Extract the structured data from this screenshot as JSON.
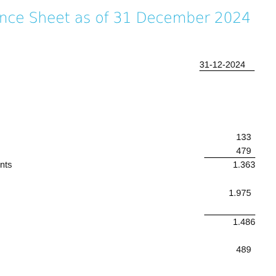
{
  "title": "nce Sheet as of 31 December 2024",
  "column_header": "31-12-2024",
  "rows": [
    {
      "label": "",
      "value": "133"
    },
    {
      "label": "",
      "value": "479"
    },
    {
      "label": "nts",
      "value": "1.363"
    },
    {
      "label": "",
      "value": "1.975"
    },
    {
      "label": "",
      "value": "1.486"
    },
    {
      "label": "",
      "value": "489"
    }
  ],
  "colors": {
    "title": "#2bb3de",
    "text": "#111111"
  }
}
